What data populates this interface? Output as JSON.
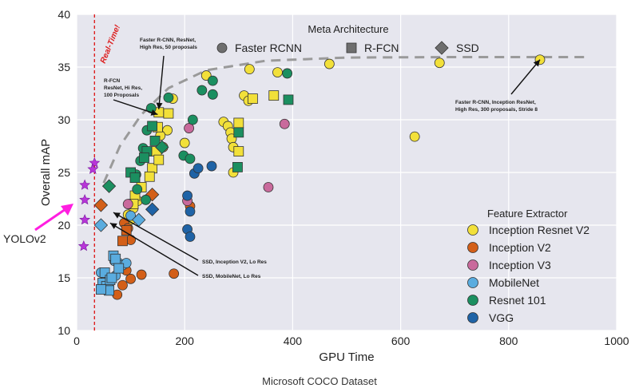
{
  "chart_data": {
    "type": "scatter",
    "caption": "Microsoft COCO Dataset",
    "xlabel": "GPU Time",
    "ylabel": "Overall mAP",
    "xlim": [
      0,
      1000
    ],
    "ylim": [
      10,
      40
    ],
    "xticks": [
      0,
      200,
      400,
      600,
      800,
      1000
    ],
    "yticks": [
      10,
      15,
      20,
      25,
      30,
      35,
      40
    ],
    "grid": true,
    "realtime_line": {
      "x": 33,
      "label": "Real-Time!"
    },
    "meta_legend": {
      "title": "Meta Architecture",
      "items": [
        {
          "label": "Faster RCNN",
          "marker": "circle"
        },
        {
          "label": "R-FCN",
          "marker": "square"
        },
        {
          "label": "SSD",
          "marker": "diamond"
        }
      ]
    },
    "feature_legend": {
      "title": "Feature Extractor",
      "items": [
        {
          "label": "Inception Resnet V2",
          "color": "#f2e03a"
        },
        {
          "label": "Inception V2",
          "color": "#d35f18"
        },
        {
          "label": "Inception V3",
          "color": "#c96a9c"
        },
        {
          "label": "MobileNet",
          "color": "#5aacdf"
        },
        {
          "label": "Resnet 101",
          "color": "#1b8f60"
        },
        {
          "label": "VGG",
          "color": "#1f63a6"
        }
      ]
    },
    "frontier": [
      [
        50,
        24
      ],
      [
        80,
        27.5
      ],
      [
        120,
        30.5
      ],
      [
        170,
        33
      ],
      [
        240,
        34.7
      ],
      [
        350,
        35.6
      ],
      [
        500,
        35.9
      ],
      [
        700,
        35.95
      ],
      [
        950,
        35.95
      ]
    ],
    "annotations": [
      {
        "lines": [
          "Faster R-CNN, ResNet,",
          "High Res, 50 proposals"
        ],
        "point": [
          152,
          31
        ]
      },
      {
        "lines": [
          "R-FCN",
          "ResNet, Hi Res,",
          "100 Proposals"
        ],
        "point": [
          150,
          30.5
        ]
      },
      {
        "lines": [
          "Faster R-CNN, Inception ResNet,",
          "High Res, 300 proposals, Stride 8"
        ],
        "point": [
          858,
          35.7
        ]
      },
      {
        "lines": [
          "SSD, Inception V2, Lo Res"
        ],
        "point": [
          68,
          21.2
        ]
      },
      {
        "lines": [
          "SSD, MobileNet, Lo Res"
        ],
        "point": [
          62,
          20.2
        ]
      }
    ],
    "yolo": {
      "label": "YOLOv2",
      "points": [
        [
          33,
          25.9
        ],
        [
          30,
          25.3
        ],
        [
          15,
          23.8
        ],
        [
          15,
          22.4
        ],
        [
          15,
          20.5
        ],
        [
          13,
          18.0
        ]
      ]
    },
    "points": [
      {
        "x": 858,
        "y": 35.7,
        "f": 0,
        "m": "circle"
      },
      {
        "x": 672,
        "y": 35.4,
        "f": 0,
        "m": "circle"
      },
      {
        "x": 468,
        "y": 35.3,
        "f": 0,
        "m": "circle"
      },
      {
        "x": 626,
        "y": 28.4,
        "f": 0,
        "m": "circle"
      },
      {
        "x": 372,
        "y": 34.5,
        "f": 0,
        "m": "circle"
      },
      {
        "x": 320,
        "y": 34.8,
        "f": 0,
        "m": "circle"
      },
      {
        "x": 240,
        "y": 34.2,
        "f": 0,
        "m": "circle"
      },
      {
        "x": 272,
        "y": 29.8,
        "f": 0,
        "m": "circle"
      },
      {
        "x": 280,
        "y": 29.4,
        "f": 0,
        "m": "circle"
      },
      {
        "x": 285,
        "y": 28.8,
        "f": 0,
        "m": "circle"
      },
      {
        "x": 287,
        "y": 28.2,
        "f": 0,
        "m": "circle"
      },
      {
        "x": 290,
        "y": 27.4,
        "f": 0,
        "m": "circle"
      },
      {
        "x": 290,
        "y": 25.0,
        "f": 0,
        "m": "circle"
      },
      {
        "x": 310,
        "y": 32.3,
        "f": 0,
        "m": "circle"
      },
      {
        "x": 318,
        "y": 31.8,
        "f": 0,
        "m": "circle"
      },
      {
        "x": 200,
        "y": 27.8,
        "f": 0,
        "m": "circle"
      },
      {
        "x": 178,
        "y": 32.0,
        "f": 0,
        "m": "circle"
      },
      {
        "x": 168,
        "y": 29.0,
        "f": 0,
        "m": "circle"
      },
      {
        "x": 155,
        "y": 28.5,
        "f": 0,
        "m": "circle"
      },
      {
        "x": 160,
        "y": 27.4,
        "f": 0,
        "m": "circle"
      },
      {
        "x": 100,
        "y": 20.5,
        "f": 0,
        "m": "circle"
      },
      {
        "x": 105,
        "y": 21.6,
        "f": 0,
        "m": "circle"
      },
      {
        "x": 95,
        "y": 21.0,
        "f": 0,
        "m": "circle"
      },
      {
        "x": 113,
        "y": 22.3,
        "f": 0,
        "m": "circle"
      },
      {
        "x": 152,
        "y": 30.7,
        "f": 0,
        "m": "square"
      },
      {
        "x": 150,
        "y": 29.3,
        "f": 0,
        "m": "square"
      },
      {
        "x": 170,
        "y": 30.6,
        "f": 0,
        "m": "square"
      },
      {
        "x": 148,
        "y": 27.0,
        "f": 0,
        "m": "square"
      },
      {
        "x": 140,
        "y": 25.4,
        "f": 0,
        "m": "square"
      },
      {
        "x": 135,
        "y": 24.6,
        "f": 0,
        "m": "square"
      },
      {
        "x": 108,
        "y": 22.8,
        "f": 0,
        "m": "square"
      },
      {
        "x": 105,
        "y": 22.0,
        "f": 0,
        "m": "square"
      },
      {
        "x": 120,
        "y": 23.6,
        "f": 0,
        "m": "square"
      },
      {
        "x": 300,
        "y": 29.7,
        "f": 0,
        "m": "square"
      },
      {
        "x": 300,
        "y": 27.0,
        "f": 0,
        "m": "square"
      },
      {
        "x": 326,
        "y": 32.0,
        "f": 0,
        "m": "square"
      },
      {
        "x": 365,
        "y": 32.3,
        "f": 0,
        "m": "square"
      },
      {
        "x": 152,
        "y": 26.2,
        "f": 0,
        "m": "square"
      },
      {
        "x": 45,
        "y": 21.9,
        "f": 1,
        "m": "diamond"
      },
      {
        "x": 88,
        "y": 20.2,
        "f": 1,
        "m": "circle"
      },
      {
        "x": 95,
        "y": 19.7,
        "f": 1,
        "m": "circle"
      },
      {
        "x": 100,
        "y": 18.6,
        "f": 1,
        "m": "circle"
      },
      {
        "x": 92,
        "y": 15.7,
        "f": 1,
        "m": "circle"
      },
      {
        "x": 85,
        "y": 14.3,
        "f": 1,
        "m": "circle"
      },
      {
        "x": 100,
        "y": 14.9,
        "f": 1,
        "m": "circle"
      },
      {
        "x": 75,
        "y": 13.4,
        "f": 1,
        "m": "circle"
      },
      {
        "x": 120,
        "y": 15.3,
        "f": 1,
        "m": "circle"
      },
      {
        "x": 180,
        "y": 15.4,
        "f": 1,
        "m": "circle"
      },
      {
        "x": 210,
        "y": 21.8,
        "f": 1,
        "m": "circle"
      },
      {
        "x": 85,
        "y": 18.5,
        "f": 1,
        "m": "square"
      },
      {
        "x": 92,
        "y": 19.5,
        "f": 1,
        "m": "square"
      },
      {
        "x": 140,
        "y": 22.9,
        "f": 1,
        "m": "diamond"
      },
      {
        "x": 208,
        "y": 29.2,
        "f": 2,
        "m": "circle"
      },
      {
        "x": 385,
        "y": 29.6,
        "f": 2,
        "m": "circle"
      },
      {
        "x": 355,
        "y": 23.6,
        "f": 2,
        "m": "circle"
      },
      {
        "x": 95,
        "y": 22.0,
        "f": 2,
        "m": "circle"
      },
      {
        "x": 205,
        "y": 22.3,
        "f": 2,
        "m": "circle"
      },
      {
        "x": 45,
        "y": 15.5,
        "f": 3,
        "m": "circle"
      },
      {
        "x": 50,
        "y": 14.6,
        "f": 3,
        "m": "circle"
      },
      {
        "x": 60,
        "y": 14.1,
        "f": 3,
        "m": "circle"
      },
      {
        "x": 70,
        "y": 16.6,
        "f": 3,
        "m": "circle"
      },
      {
        "x": 78,
        "y": 16.4,
        "f": 3,
        "m": "circle"
      },
      {
        "x": 85,
        "y": 16.2,
        "f": 3,
        "m": "circle"
      },
      {
        "x": 92,
        "y": 16.4,
        "f": 3,
        "m": "circle"
      },
      {
        "x": 100,
        "y": 20.9,
        "f": 3,
        "m": "circle"
      },
      {
        "x": 72,
        "y": 15.2,
        "f": 3,
        "m": "circle"
      },
      {
        "x": 48,
        "y": 14.5,
        "f": 3,
        "m": "square"
      },
      {
        "x": 52,
        "y": 15.5,
        "f": 3,
        "m": "square"
      },
      {
        "x": 55,
        "y": 14.2,
        "f": 3,
        "m": "square"
      },
      {
        "x": 58,
        "y": 13.9,
        "f": 3,
        "m": "square"
      },
      {
        "x": 62,
        "y": 14.8,
        "f": 3,
        "m": "square"
      },
      {
        "x": 65,
        "y": 15.0,
        "f": 3,
        "m": "square"
      },
      {
        "x": 68,
        "y": 17.1,
        "f": 3,
        "m": "square"
      },
      {
        "x": 72,
        "y": 16.8,
        "f": 3,
        "m": "square"
      },
      {
        "x": 78,
        "y": 15.9,
        "f": 3,
        "m": "square"
      },
      {
        "x": 60,
        "y": 13.8,
        "f": 3,
        "m": "square"
      },
      {
        "x": 45,
        "y": 13.9,
        "f": 3,
        "m": "square"
      },
      {
        "x": 45,
        "y": 20.0,
        "f": 3,
        "m": "diamond"
      },
      {
        "x": 115,
        "y": 20.5,
        "f": 3,
        "m": "diamond"
      },
      {
        "x": 232,
        "y": 32.8,
        "f": 4,
        "m": "circle"
      },
      {
        "x": 252,
        "y": 32.4,
        "f": 4,
        "m": "circle"
      },
      {
        "x": 252,
        "y": 33.7,
        "f": 4,
        "m": "circle"
      },
      {
        "x": 390,
        "y": 34.4,
        "f": 4,
        "m": "circle"
      },
      {
        "x": 215,
        "y": 30.0,
        "f": 4,
        "m": "circle"
      },
      {
        "x": 198,
        "y": 26.6,
        "f": 4,
        "m": "circle"
      },
      {
        "x": 210,
        "y": 26.3,
        "f": 4,
        "m": "circle"
      },
      {
        "x": 138,
        "y": 31.1,
        "f": 4,
        "m": "circle"
      },
      {
        "x": 130,
        "y": 29.0,
        "f": 4,
        "m": "circle"
      },
      {
        "x": 123,
        "y": 27.3,
        "f": 4,
        "m": "circle"
      },
      {
        "x": 118,
        "y": 26.1,
        "f": 4,
        "m": "circle"
      },
      {
        "x": 110,
        "y": 24.8,
        "f": 4,
        "m": "circle"
      },
      {
        "x": 128,
        "y": 22.4,
        "f": 4,
        "m": "circle"
      },
      {
        "x": 112,
        "y": 23.4,
        "f": 4,
        "m": "circle"
      },
      {
        "x": 170,
        "y": 32.1,
        "f": 4,
        "m": "circle"
      },
      {
        "x": 140,
        "y": 29.4,
        "f": 4,
        "m": "square"
      },
      {
        "x": 145,
        "y": 28.0,
        "f": 4,
        "m": "square"
      },
      {
        "x": 130,
        "y": 27.0,
        "f": 4,
        "m": "square"
      },
      {
        "x": 125,
        "y": 26.4,
        "f": 4,
        "m": "square"
      },
      {
        "x": 100,
        "y": 25.0,
        "f": 4,
        "m": "square"
      },
      {
        "x": 108,
        "y": 24.5,
        "f": 4,
        "m": "square"
      },
      {
        "x": 392,
        "y": 31.9,
        "f": 4,
        "m": "square"
      },
      {
        "x": 300,
        "y": 28.8,
        "f": 4,
        "m": "square"
      },
      {
        "x": 298,
        "y": 25.5,
        "f": 4,
        "m": "square"
      },
      {
        "x": 60,
        "y": 23.7,
        "f": 4,
        "m": "diamond"
      },
      {
        "x": 158,
        "y": 27.4,
        "f": 4,
        "m": "diamond"
      },
      {
        "x": 205,
        "y": 22.8,
        "f": 5,
        "m": "circle"
      },
      {
        "x": 210,
        "y": 21.3,
        "f": 5,
        "m": "circle"
      },
      {
        "x": 205,
        "y": 19.6,
        "f": 5,
        "m": "circle"
      },
      {
        "x": 210,
        "y": 18.9,
        "f": 5,
        "m": "circle"
      },
      {
        "x": 218,
        "y": 24.9,
        "f": 5,
        "m": "circle"
      },
      {
        "x": 225,
        "y": 25.4,
        "f": 5,
        "m": "circle"
      },
      {
        "x": 250,
        "y": 25.6,
        "f": 5,
        "m": "circle"
      },
      {
        "x": 140,
        "y": 21.5,
        "f": 5,
        "m": "diamond"
      }
    ]
  }
}
